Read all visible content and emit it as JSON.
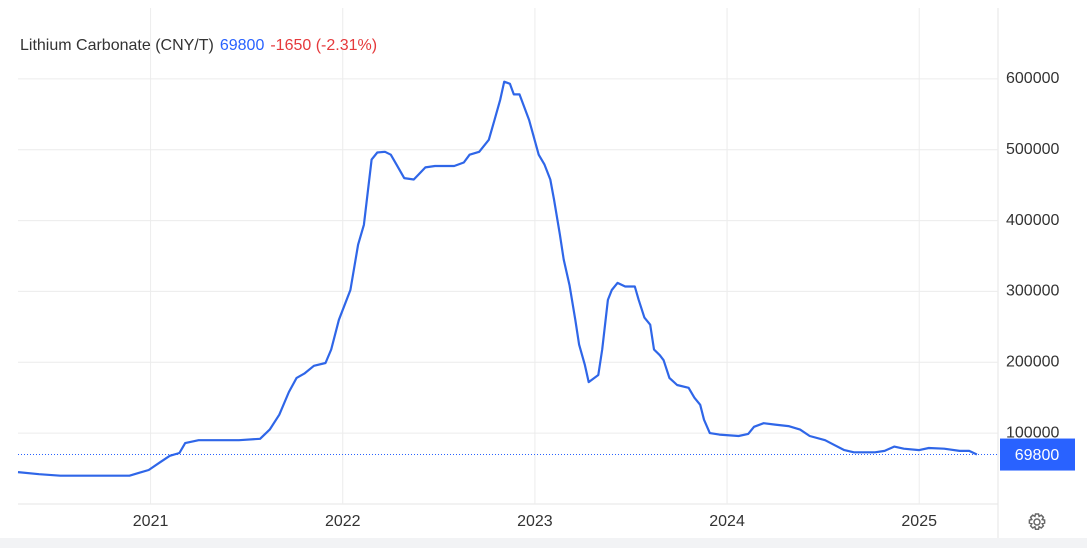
{
  "header": {
    "title": "Lithium Carbonate (CNY/T)",
    "price": "69800",
    "change": "-1650 (-2.31%)"
  },
  "chart_data": {
    "type": "line",
    "x": [
      2020.31,
      2020.42,
      2020.53,
      2020.73,
      2020.89,
      2020.94,
      2020.99,
      2021.05,
      2021.1,
      2021.15,
      2021.18,
      2021.25,
      2021.46,
      2021.57,
      2021.62,
      2021.67,
      2021.72,
      2021.76,
      2021.8,
      2021.85,
      2021.91,
      2021.94,
      2021.98,
      2022.04,
      2022.08,
      2022.11,
      2022.15,
      2022.18,
      2022.22,
      2022.25,
      2022.28,
      2022.32,
      2022.37,
      2022.43,
      2022.48,
      2022.58,
      2022.63,
      2022.66,
      2022.71,
      2022.76,
      2022.79,
      2022.82,
      2022.84,
      2022.87,
      2022.89,
      2022.92,
      2022.97,
      2023.02,
      2023.05,
      2023.08,
      2023.1,
      2023.13,
      2023.15,
      2023.18,
      2023.21,
      2023.23,
      2023.26,
      2023.28,
      2023.33,
      2023.35,
      2023.38,
      2023.4,
      2023.43,
      2023.47,
      2023.52,
      2023.54,
      2023.57,
      2023.6,
      2023.62,
      2023.65,
      2023.67,
      2023.7,
      2023.74,
      2023.8,
      2023.83,
      2023.86,
      2023.88,
      2023.91,
      2023.96,
      2024.06,
      2024.11,
      2024.14,
      2024.19,
      2024.25,
      2024.32,
      2024.38,
      2024.43,
      2024.51,
      2024.56,
      2024.61,
      2024.66,
      2024.77,
      2024.82,
      2024.87,
      2024.92,
      2025.0,
      2025.05,
      2025.13,
      2025.21,
      2025.26,
      2025.3
    ],
    "series": [
      {
        "name": "Lithium Carbonate (CNY/T)",
        "color": "#2f66e8",
        "values": [
          45000,
          42000,
          40000,
          40000,
          40000,
          44000,
          48000,
          59000,
          68000,
          72000,
          86000,
          90000,
          90000,
          92000,
          105000,
          126000,
          158000,
          178000,
          184000,
          195000,
          199000,
          218000,
          260000,
          302000,
          366000,
          394000,
          486000,
          496000,
          497000,
          493000,
          479000,
          460000,
          458000,
          475000,
          477000,
          477000,
          482000,
          493000,
          497000,
          514000,
          542000,
          571000,
          596000,
          593000,
          578000,
          578000,
          542000,
          493000,
          479000,
          458000,
          429000,
          380000,
          345000,
          309000,
          260000,
          225000,
          196000,
          172000,
          182000,
          218000,
          288000,
          302000,
          312000,
          307000,
          307000,
          288000,
          263000,
          253000,
          218000,
          210000,
          203000,
          178000,
          168000,
          164000,
          150000,
          140000,
          119000,
          100000,
          98000,
          96000,
          99000,
          109000,
          114000,
          112000,
          110000,
          105000,
          96000,
          90000,
          83000,
          76000,
          73000,
          73000,
          75000,
          81000,
          78000,
          76000,
          79000,
          78000,
          75000,
          75000,
          69800
        ]
      }
    ],
    "xlim": [
      2020.31,
      2025.41
    ],
    "xticks": [
      2021,
      2022,
      2023,
      2024,
      2025
    ],
    "ylim": [
      0,
      700000
    ],
    "yticks": [
      100000,
      200000,
      300000,
      400000,
      500000,
      600000
    ],
    "grid": true,
    "last_value_color": "#2962ff"
  }
}
